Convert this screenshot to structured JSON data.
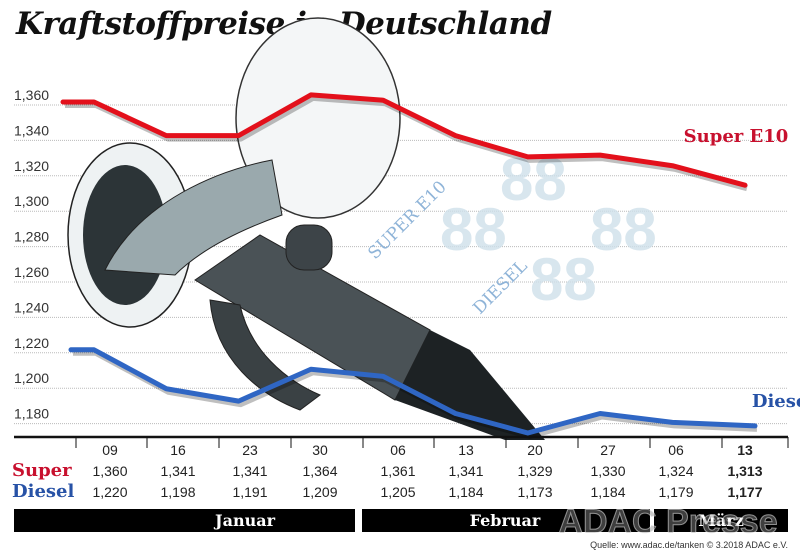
{
  "chart_data": {
    "type": "line",
    "title": "Kraftstoffpreise in Deutschland",
    "categories": [
      "09",
      "16",
      "23",
      "30",
      "06",
      "13",
      "20",
      "27",
      "06",
      "13"
    ],
    "months": [
      "Januar",
      "Februar",
      "März"
    ],
    "ylim": [
      1171,
      1365
    ],
    "yticks": [
      "1,180",
      "1,200",
      "1,220",
      "1,240",
      "1,260",
      "1,280",
      "1,300",
      "1,320",
      "1,340",
      "1,360"
    ],
    "ytick_values": [
      1180,
      1200,
      1220,
      1240,
      1260,
      1280,
      1300,
      1320,
      1340,
      1360
    ],
    "grid": true,
    "series": [
      {
        "name": "Super E10",
        "row_label": "Super",
        "color": "#e3101b",
        "label_color": "#c8102e",
        "values": [
          1.36,
          1.341,
          1.341,
          1.364,
          1.361,
          1.341,
          1.329,
          1.33,
          1.324,
          1.313
        ],
        "labels": [
          "1,360",
          "1,341",
          "1,341",
          "1,364",
          "1,361",
          "1,341",
          "1,329",
          "1,330",
          "1,324",
          "1,313"
        ]
      },
      {
        "name": "Diesel",
        "row_label": "Diesel",
        "color": "#2f66c4",
        "label_color": "#2752a6",
        "values": [
          1.22,
          1.198,
          1.191,
          1.209,
          1.205,
          1.184,
          1.173,
          1.184,
          1.179,
          1.177
        ],
        "labels": [
          "1,220",
          "1,198",
          "1,191",
          "1,209",
          "1,205",
          "1,184",
          "1,173",
          "1,184",
          "1,179",
          "1,177"
        ]
      }
    ]
  },
  "watermark": "ADAC Presse",
  "illustration_text": [
    "SUPER E10",
    "DIESEL"
  ],
  "source": "Quelle: www.adac.de/tanken   © 3.2018  ADAC e.V."
}
